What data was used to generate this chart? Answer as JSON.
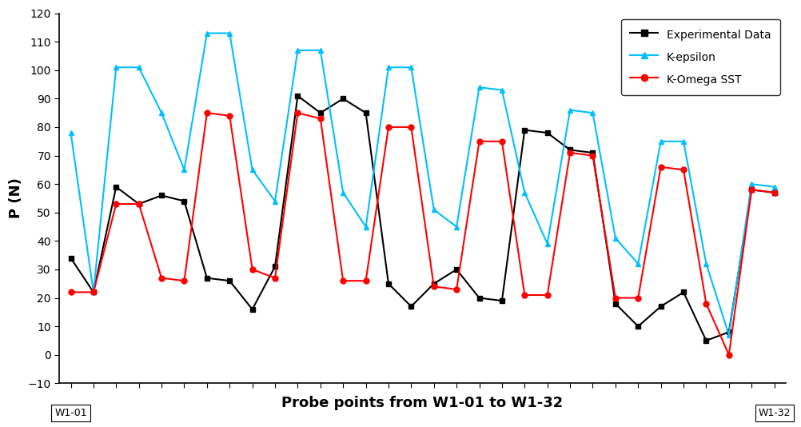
{
  "xlabel": "Probe points from W1-01 to W1-32",
  "ylabel": "P (N)",
  "ylim": [
    -10.0,
    120.0
  ],
  "yticks": [
    -10.0,
    0.0,
    10.0,
    20.0,
    30.0,
    40.0,
    50.0,
    60.0,
    70.0,
    80.0,
    90.0,
    100.0,
    110.0,
    120.0
  ],
  "x_label_left": "W1-01",
  "x_label_right": "W1-32",
  "experimental": [
    34,
    22,
    59,
    53,
    56,
    54,
    27,
    26,
    16,
    31,
    91,
    85,
    90,
    85,
    25,
    17,
    25,
    30,
    20,
    19,
    79,
    78,
    72,
    71,
    18,
    10,
    17,
    22,
    5,
    8,
    58,
    57
  ],
  "k_epsilon": [
    78,
    22,
    101,
    101,
    85,
    65,
    113,
    113,
    65,
    54,
    107,
    107,
    57,
    45,
    101,
    101,
    51,
    45,
    94,
    93,
    57,
    39,
    86,
    85,
    41,
    32,
    75,
    75,
    32,
    7,
    60,
    59
  ],
  "k_omega": [
    22,
    22,
    53,
    53,
    27,
    26,
    85,
    84,
    30,
    27,
    85,
    83,
    26,
    26,
    80,
    80,
    24,
    23,
    75,
    75,
    21,
    21,
    71,
    70,
    20,
    20,
    66,
    65,
    18,
    0,
    58,
    57
  ],
  "exp_color": "#000000",
  "keps_color": "#00bfff",
  "komega_color": "#ff0000",
  "linewidth": 1.5,
  "markersize": 5
}
